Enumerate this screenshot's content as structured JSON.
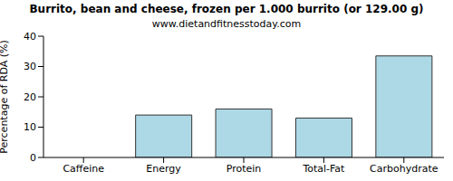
{
  "chart_data": {
    "type": "bar",
    "title": "Burrito, bean and cheese, frozen per 1.000 burrito (or 129.00 g)",
    "subtitle": "www.dietandfitnesstoday.com",
    "y_label": "Percentage of RDA (%)",
    "categories": [
      "Caffeine",
      "Energy",
      "Protein",
      "Total-Fat",
      "Carbohydrate"
    ],
    "values": [
      0,
      14,
      16,
      13,
      33.5
    ],
    "color": "#add8e6",
    "ylim": [
      0,
      40
    ],
    "yticks": [
      0,
      10,
      20,
      30,
      40
    ],
    "grid": false
  }
}
